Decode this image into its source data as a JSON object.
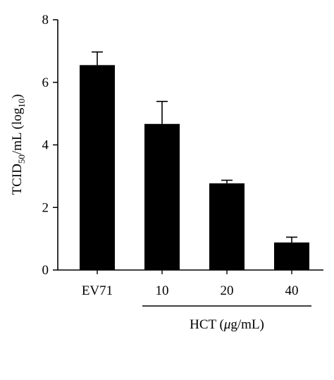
{
  "chart_data": {
    "type": "bar",
    "categories": [
      "EV71",
      "10",
      "20",
      "40"
    ],
    "values": [
      6.55,
      4.67,
      2.77,
      0.88
    ],
    "errors": [
      0.42,
      0.72,
      0.1,
      0.17
    ],
    "ylim": [
      0,
      8
    ],
    "yticks": [
      0,
      2,
      4,
      6,
      8
    ],
    "ylabel": {
      "prefix": "TCID",
      "sub1": "50",
      "middle": "/mL (log",
      "sub2": "10",
      "suffix": ")"
    },
    "group": {
      "categories": [
        "10",
        "20",
        "40"
      ],
      "label": {
        "prefix": "HCT (",
        "mu": "μ",
        "suffix": "g/mL)"
      }
    },
    "bar_color": "#000000",
    "grid": false,
    "legend": "none"
  }
}
